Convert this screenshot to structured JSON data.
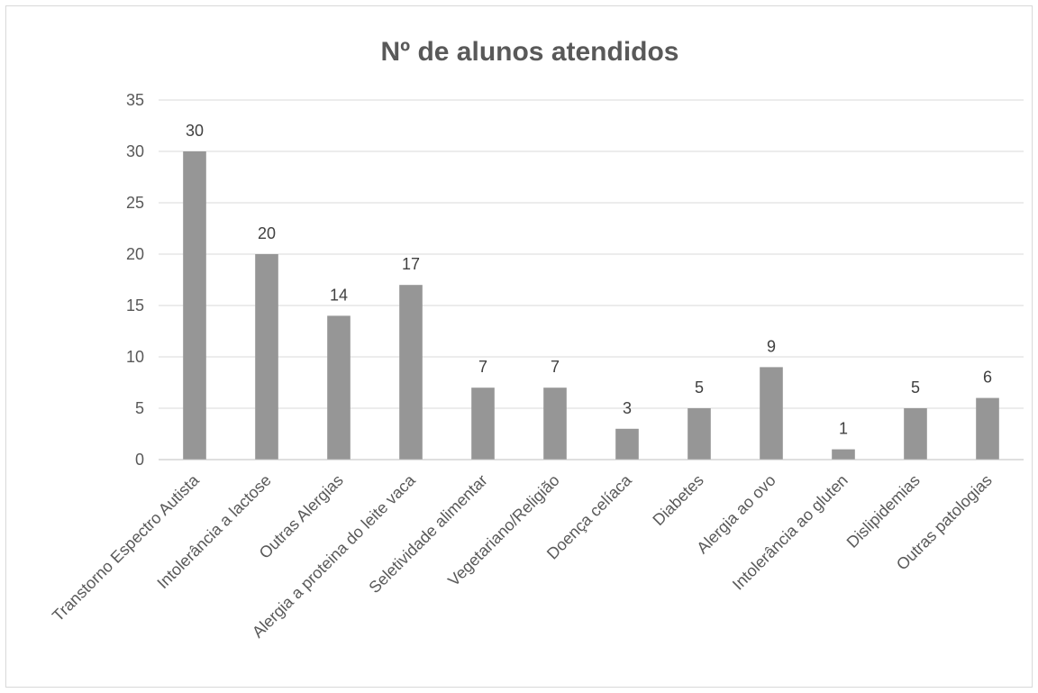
{
  "chart_data": {
    "type": "bar",
    "title": "Nº de alunos atendidos",
    "categories": [
      "Transtorno Espectro Autista",
      "Intolerância a lactose",
      "Outras Alergias",
      "Alergia a proteina do leite vaca",
      "Seletividade alimentar",
      "Vegetariano/Religião",
      "Doença celíaca",
      "Diabetes",
      "Alergia ao ovo",
      "Intolerância ao gluten",
      "Dislipidemias",
      "Outras patologias"
    ],
    "values": [
      30,
      20,
      14,
      17,
      7,
      7,
      3,
      5,
      9,
      1,
      5,
      6
    ],
    "ylim": [
      0,
      35
    ],
    "yticks": [
      0,
      5,
      10,
      15,
      20,
      25,
      30,
      35
    ],
    "grid": true,
    "legend": "none",
    "bar_color": "#969696"
  }
}
